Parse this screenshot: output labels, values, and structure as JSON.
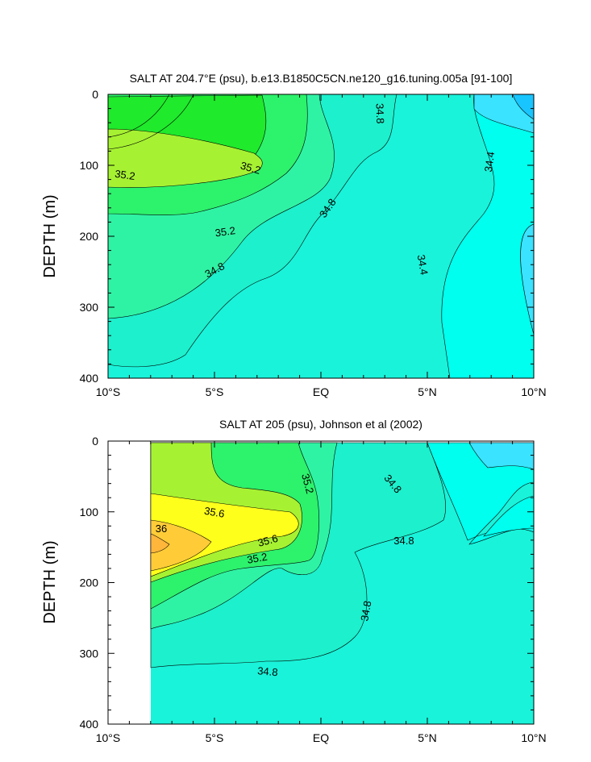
{
  "chart_data": [
    {
      "type": "contour",
      "title": "SALT AT 204.7°E (psu), b.e13.B1850C5CN.ne120_g16.tuning.005a [91-100]",
      "ylabel": "DEPTH (m)",
      "xlabel": "",
      "xlim": [
        -10,
        10
      ],
      "ylim": [
        400,
        0
      ],
      "x_ticks": [
        {
          "value": -10,
          "label": "10°S"
        },
        {
          "value": -5,
          "label": "5°S"
        },
        {
          "value": 0,
          "label": "EQ"
        },
        {
          "value": 5,
          "label": "5°N"
        },
        {
          "value": 10,
          "label": "10°N"
        }
      ],
      "y_ticks": [
        0,
        100,
        200,
        300,
        400
      ],
      "contour_labels": [
        {
          "text": "35.2",
          "lat": -9.2,
          "depth": 113,
          "angle": 8
        },
        {
          "text": "35.2",
          "lat": -3.3,
          "depth": 103,
          "angle": 16
        },
        {
          "text": "35.2",
          "lat": -4.5,
          "depth": 193,
          "angle": -8
        },
        {
          "text": "34.8",
          "lat": -5.0,
          "depth": 247,
          "angle": -28
        },
        {
          "text": "34.8",
          "lat": 0.3,
          "depth": 160,
          "angle": -55
        },
        {
          "text": "34.8",
          "lat": 2.8,
          "depth": 27,
          "angle": 88
        },
        {
          "text": "34.4",
          "lat": 7.9,
          "depth": 95,
          "angle": -82
        },
        {
          "text": "34.4",
          "lat": 4.8,
          "depth": 240,
          "angle": 80
        }
      ]
    },
    {
      "type": "contour",
      "title": "SALT AT 205 (psu), Johnson et al (2002)",
      "ylabel": "DEPTH (m)",
      "xlabel": "",
      "xlim": [
        -10,
        10
      ],
      "ylim": [
        400,
        0
      ],
      "data_start_lat": -8,
      "x_ticks": [
        {
          "value": -10,
          "label": "10°S"
        },
        {
          "value": -5,
          "label": "5°S"
        },
        {
          "value": 0,
          "label": "EQ"
        },
        {
          "value": 5,
          "label": "5°N"
        },
        {
          "value": 10,
          "label": "10°N"
        }
      ],
      "y_ticks": [
        0,
        100,
        200,
        300,
        400
      ],
      "contour_labels": [
        {
          "text": "35.6",
          "lat": -5.0,
          "depth": 100,
          "angle": 10
        },
        {
          "text": "36",
          "lat": -7.5,
          "depth": 123,
          "angle": 0
        },
        {
          "text": "35.6",
          "lat": -2.5,
          "depth": 140,
          "angle": -15
        },
        {
          "text": "35.2",
          "lat": -3.0,
          "depth": 165,
          "angle": -10
        },
        {
          "text": "35.2",
          "lat": -0.6,
          "depth": 60,
          "angle": 75
        },
        {
          "text": "34.8",
          "lat": 3.4,
          "depth": 60,
          "angle": 50
        },
        {
          "text": "34.8",
          "lat": 3.9,
          "depth": 140,
          "angle": 0
        },
        {
          "text": "34.8",
          "lat": 2.1,
          "depth": 240,
          "angle": -80
        },
        {
          "text": "34.8",
          "lat": -2.5,
          "depth": 325,
          "angle": 5
        }
      ]
    }
  ],
  "colors": {
    "cyan_deep": "#18c5ff",
    "cyan_mid": "#3ae3ff",
    "cyan": "#00ffee",
    "aqua_light": "#18f2e0",
    "aqua": "#1cf0cc",
    "mint": "#2ff3a4",
    "green": "#2df26c",
    "green_strong": "#1fea2c",
    "lime": "#a6f232",
    "yellow": "#ffff1c",
    "orange": "#ffcc38"
  }
}
